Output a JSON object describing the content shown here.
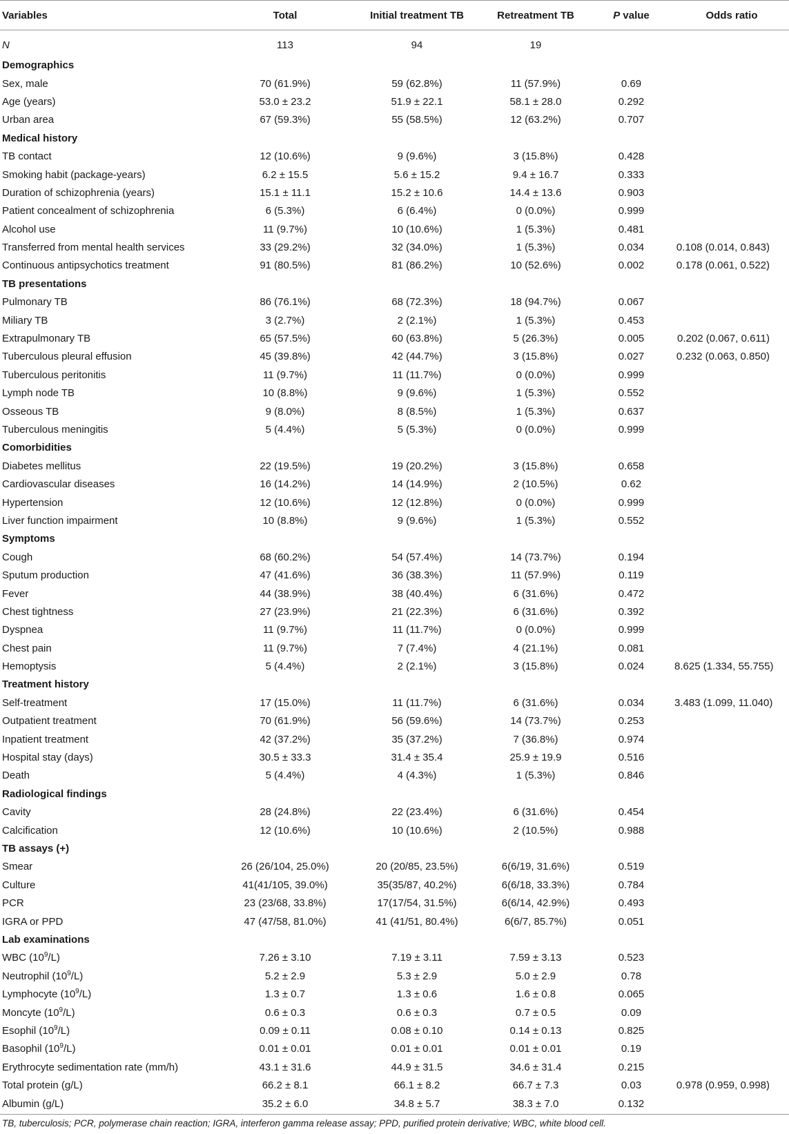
{
  "table": {
    "headers": [
      "Variables",
      "Total",
      "Initial treatment TB",
      "Retreatment TB",
      "P value",
      "Odds ratio"
    ],
    "rows": [
      {
        "type": "n",
        "cells": [
          "N",
          "113",
          "94",
          "19",
          "",
          ""
        ]
      },
      {
        "type": "section",
        "cells": [
          "Demographics",
          "",
          "",
          "",
          "",
          ""
        ]
      },
      {
        "type": "data",
        "cells": [
          "Sex, male",
          "70 (61.9%)",
          "59 (62.8%)",
          "11 (57.9%)",
          "0.69",
          ""
        ]
      },
      {
        "type": "data",
        "cells": [
          "Age (years)",
          "53.0 ± 23.2",
          "51.9 ± 22.1",
          "58.1 ± 28.0",
          "0.292",
          ""
        ]
      },
      {
        "type": "data",
        "cells": [
          "Urban area",
          "67 (59.3%)",
          "55 (58.5%)",
          "12 (63.2%)",
          "0.707",
          ""
        ]
      },
      {
        "type": "section",
        "cells": [
          "Medical history",
          "",
          "",
          "",
          "",
          ""
        ]
      },
      {
        "type": "data",
        "cells": [
          "TB contact",
          "12 (10.6%)",
          "9 (9.6%)",
          "3 (15.8%)",
          "0.428",
          ""
        ]
      },
      {
        "type": "data",
        "cells": [
          "Smoking habit (package-years)",
          "6.2 ± 15.5",
          "5.6 ± 15.2",
          "9.4 ± 16.7",
          "0.333",
          ""
        ]
      },
      {
        "type": "data",
        "cells": [
          "Duration of schizophrenia (years)",
          "15.1 ± 11.1",
          "15.2 ± 10.6",
          "14.4 ± 13.6",
          "0.903",
          ""
        ]
      },
      {
        "type": "data",
        "cells": [
          "Patient concealment of schizophrenia",
          "6 (5.3%)",
          "6 (6.4%)",
          "0 (0.0%)",
          "0.999",
          ""
        ]
      },
      {
        "type": "data",
        "cells": [
          "Alcohol use",
          "11 (9.7%)",
          "10 (10.6%)",
          "1 (5.3%)",
          "0.481",
          ""
        ]
      },
      {
        "type": "data",
        "cells": [
          "Transferred from mental health services",
          "33 (29.2%)",
          "32 (34.0%)",
          "1 (5.3%)",
          "0.034",
          "0.108 (0.014, 0.843)"
        ]
      },
      {
        "type": "data",
        "cells": [
          "Continuous antipsychotics treatment",
          "91 (80.5%)",
          "81 (86.2%)",
          "10 (52.6%)",
          "0.002",
          "0.178 (0.061, 0.522)"
        ]
      },
      {
        "type": "section",
        "cells": [
          "TB presentations",
          "",
          "",
          "",
          "",
          ""
        ]
      },
      {
        "type": "data",
        "cells": [
          "Pulmonary TB",
          "86 (76.1%)",
          "68 (72.3%)",
          "18 (94.7%)",
          "0.067",
          ""
        ]
      },
      {
        "type": "data",
        "cells": [
          "Miliary TB",
          "3 (2.7%)",
          "2 (2.1%)",
          "1 (5.3%)",
          "0.453",
          ""
        ]
      },
      {
        "type": "data",
        "cells": [
          "Extrapulmonary TB",
          "65 (57.5%)",
          "60 (63.8%)",
          "5 (26.3%)",
          "0.005",
          "0.202 (0.067, 0.611)"
        ]
      },
      {
        "type": "data",
        "cells": [
          "Tuberculous pleural effusion",
          "45 (39.8%)",
          "42 (44.7%)",
          "3 (15.8%)",
          "0.027",
          "0.232 (0.063, 0.850)"
        ]
      },
      {
        "type": "data",
        "cells": [
          "Tuberculous peritonitis",
          "11 (9.7%)",
          "11 (11.7%)",
          "0 (0.0%)",
          "0.999",
          ""
        ]
      },
      {
        "type": "data",
        "cells": [
          "Lymph node TB",
          "10 (8.8%)",
          "9 (9.6%)",
          "1 (5.3%)",
          "0.552",
          ""
        ]
      },
      {
        "type": "data",
        "cells": [
          "Osseous TB",
          "9 (8.0%)",
          "8 (8.5%)",
          "1 (5.3%)",
          "0.637",
          ""
        ]
      },
      {
        "type": "data",
        "cells": [
          "Tuberculous meningitis",
          "5 (4.4%)",
          "5 (5.3%)",
          "0 (0.0%)",
          "0.999",
          ""
        ]
      },
      {
        "type": "section",
        "cells": [
          "Comorbidities",
          "",
          "",
          "",
          "",
          ""
        ]
      },
      {
        "type": "data",
        "cells": [
          "Diabetes mellitus",
          "22 (19.5%)",
          "19 (20.2%)",
          "3 (15.8%)",
          "0.658",
          ""
        ]
      },
      {
        "type": "data",
        "cells": [
          "Cardiovascular diseases",
          "16 (14.2%)",
          "14 (14.9%)",
          "2 (10.5%)",
          "0.62",
          ""
        ]
      },
      {
        "type": "data",
        "cells": [
          "Hypertension",
          "12 (10.6%)",
          "12 (12.8%)",
          "0 (0.0%)",
          "0.999",
          ""
        ]
      },
      {
        "type": "data",
        "cells": [
          "Liver function impairment",
          "10 (8.8%)",
          "9 (9.6%)",
          "1 (5.3%)",
          "0.552",
          ""
        ]
      },
      {
        "type": "section",
        "cells": [
          "Symptoms",
          "",
          "",
          "",
          "",
          ""
        ]
      },
      {
        "type": "data",
        "cells": [
          "Cough",
          "68 (60.2%)",
          "54 (57.4%)",
          "14 (73.7%)",
          "0.194",
          ""
        ]
      },
      {
        "type": "data",
        "cells": [
          "Sputum production",
          "47 (41.6%)",
          "36 (38.3%)",
          "11 (57.9%)",
          "0.119",
          ""
        ]
      },
      {
        "type": "data",
        "cells": [
          "Fever",
          "44 (38.9%)",
          "38 (40.4%)",
          "6 (31.6%)",
          "0.472",
          ""
        ]
      },
      {
        "type": "data",
        "cells": [
          "Chest tightness",
          "27 (23.9%)",
          "21 (22.3%)",
          "6 (31.6%)",
          "0.392",
          ""
        ]
      },
      {
        "type": "data",
        "cells": [
          "Dyspnea",
          "11 (9.7%)",
          "11 (11.7%)",
          "0 (0.0%)",
          "0.999",
          ""
        ]
      },
      {
        "type": "data",
        "cells": [
          "Chest pain",
          "11 (9.7%)",
          "7 (7.4%)",
          "4 (21.1%)",
          "0.081",
          ""
        ]
      },
      {
        "type": "data",
        "cells": [
          "Hemoptysis",
          "5 (4.4%)",
          "2 (2.1%)",
          "3 (15.8%)",
          "0.024",
          "8.625 (1.334, 55.755)"
        ]
      },
      {
        "type": "section",
        "cells": [
          "Treatment history",
          "",
          "",
          "",
          "",
          ""
        ]
      },
      {
        "type": "data",
        "cells": [
          "Self-treatment",
          "17 (15.0%)",
          "11 (11.7%)",
          "6 (31.6%)",
          "0.034",
          "3.483 (1.099, 11.040)"
        ]
      },
      {
        "type": "data",
        "cells": [
          "Outpatient treatment",
          "70 (61.9%)",
          "56 (59.6%)",
          "14 (73.7%)",
          "0.253",
          ""
        ]
      },
      {
        "type": "data",
        "cells": [
          "Inpatient treatment",
          "42 (37.2%)",
          "35 (37.2%)",
          "7 (36.8%)",
          "0.974",
          ""
        ]
      },
      {
        "type": "data",
        "cells": [
          "Hospital stay (days)",
          "30.5 ± 33.3",
          "31.4 ± 35.4",
          "25.9 ± 19.9",
          "0.516",
          ""
        ]
      },
      {
        "type": "data",
        "cells": [
          "Death",
          "5 (4.4%)",
          "4 (4.3%)",
          "1 (5.3%)",
          "0.846",
          ""
        ]
      },
      {
        "type": "section",
        "cells": [
          "Radiological findings",
          "",
          "",
          "",
          "",
          ""
        ]
      },
      {
        "type": "data",
        "cells": [
          "Cavity",
          "28 (24.8%)",
          "22 (23.4%)",
          "6 (31.6%)",
          "0.454",
          ""
        ]
      },
      {
        "type": "data",
        "cells": [
          "Calcification",
          "12 (10.6%)",
          "10 (10.6%)",
          "2 (10.5%)",
          "0.988",
          ""
        ]
      },
      {
        "type": "section",
        "cells": [
          "TB assays (+)",
          "",
          "",
          "",
          "",
          ""
        ]
      },
      {
        "type": "data",
        "cells": [
          "Smear",
          "26 (26/104, 25.0%)",
          "20 (20/85, 23.5%)",
          "6(6/19, 31.6%)",
          "0.519",
          ""
        ]
      },
      {
        "type": "data",
        "cells": [
          "Culture",
          "41(41/105, 39.0%)",
          "35(35/87, 40.2%)",
          "6(6/18, 33.3%)",
          "0.784",
          ""
        ]
      },
      {
        "type": "data",
        "cells": [
          "PCR",
          "23 (23/68, 33.8%)",
          "17(17/54, 31.5%)",
          "6(6/14, 42.9%)",
          "0.493",
          ""
        ]
      },
      {
        "type": "data",
        "cells": [
          "IGRA or PPD",
          "47 (47/58, 81.0%)",
          "41 (41/51, 80.4%)",
          "6(6/7, 85.7%)",
          "0.051",
          ""
        ]
      },
      {
        "type": "section",
        "cells": [
          "Lab examinations",
          "",
          "",
          "",
          "",
          ""
        ]
      },
      {
        "type": "data",
        "cells": [
          "WBC (10^9/L)",
          "7.26 ± 3.10",
          "7.19 ± 3.11",
          "7.59 ± 3.13",
          "0.523",
          ""
        ]
      },
      {
        "type": "data",
        "cells": [
          "Neutrophil (10^9/L)",
          "5.2 ± 2.9",
          "5.3 ± 2.9",
          "5.0 ± 2.9",
          "0.78",
          ""
        ]
      },
      {
        "type": "data",
        "cells": [
          "Lymphocyte (10^9/L)",
          "1.3 ± 0.7",
          "1.3 ± 0.6",
          "1.6 ± 0.8",
          "0.065",
          ""
        ]
      },
      {
        "type": "data",
        "cells": [
          "Moncyte (10^9/L)",
          "0.6 ± 0.3",
          "0.6 ± 0.3",
          "0.7 ± 0.5",
          "0.09",
          ""
        ]
      },
      {
        "type": "data",
        "cells": [
          "Esophil (10^9/L)",
          "0.09 ± 0.11",
          "0.08 ± 0.10",
          "0.14 ± 0.13",
          "0.825",
          ""
        ]
      },
      {
        "type": "data",
        "cells": [
          "Basophil (10^9/L)",
          "0.01 ± 0.01",
          "0.01 ± 0.01",
          "0.01 ± 0.01",
          "0.19",
          ""
        ]
      },
      {
        "type": "data",
        "cells": [
          "Erythrocyte sedimentation rate (mm/h)",
          "43.1 ± 31.6",
          "44.9 ± 31.5",
          "34.6 ± 31.4",
          "0.215",
          ""
        ]
      },
      {
        "type": "data",
        "cells": [
          "Total protein (g/L)",
          "66.2 ± 8.1",
          "66.1 ± 8.2",
          "66.7 ± 7.3",
          "0.03",
          "0.978 (0.959, 0.998)"
        ]
      },
      {
        "type": "data",
        "cells": [
          "Albumin (g/L)",
          "35.2 ± 6.0",
          "34.8 ± 5.7",
          "38.3 ± 7.0",
          "0.132",
          ""
        ]
      }
    ]
  },
  "footnote": "TB, tuberculosis; PCR, polymerase chain reaction; IGRA, interferon gamma release assay; PPD, purified protein derivative; WBC, white blood cell."
}
